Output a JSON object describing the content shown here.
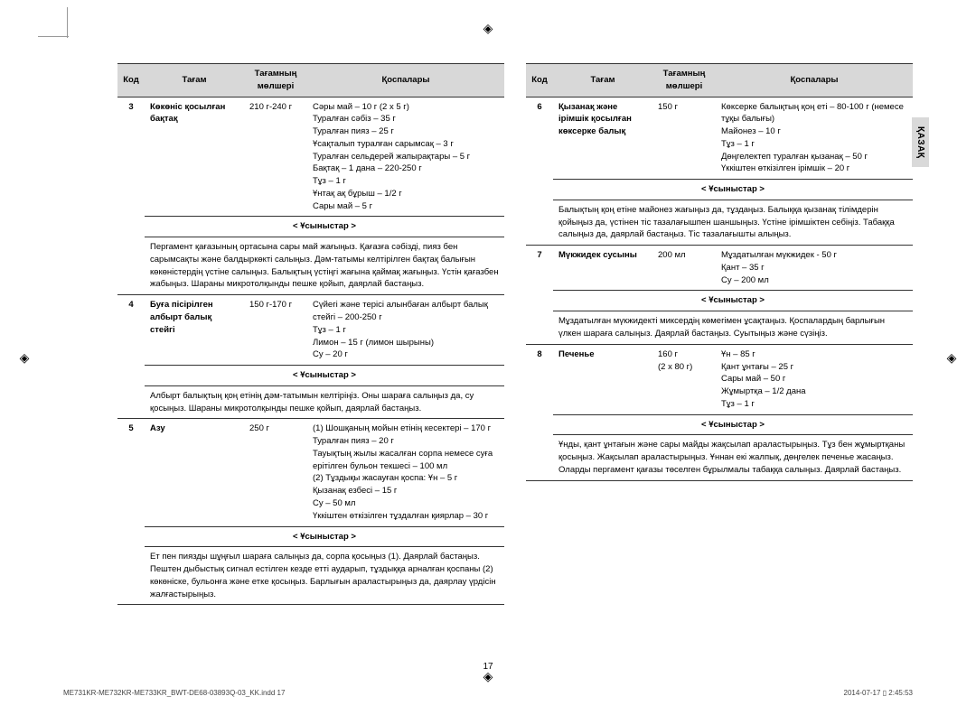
{
  "headers": {
    "code": "Код",
    "name": "Тағам",
    "amount": "Тағамның мөлшері",
    "ingredients": "Қоспалары"
  },
  "hint_label": "< Ұсыныстар >",
  "side_tab": "ҚАЗАҚ",
  "page_number": "17",
  "footer_left": "ME731KR-ME732KR-ME733KR_BWT-DE68-03893Q-03_KK.indd   17",
  "footer_right": "2014-07-17   ▯ 2:45:53",
  "left_rows": [
    {
      "code": "3",
      "name": "Көкөніс қосылған бақтақ",
      "amount": "210 г-240 г",
      "ingredients": "Сәры май – 10 г (2 x 5 г)\nТуралған сәбіз – 35 г\nТуралған пияз – 25 г\nҰсақталып туралған сарымсақ – 3 г\nТуралған сельдерей жапырақтары – 5 г\nБақтақ – 1 дана – 220-250 г\nТұз – 1 г\nҰнтақ ақ бұрыш – 1/2 г\nСары май – 5 г",
      "hint": "Пергамент қағазының ортасына сары май жағыңыз. Қағазға сәбізді, пияз бен сарымсақты және балдыркөкті салыңыз. Дәм-татымы келтірілген бақтақ балығын көкөністердің үстіне салыңыз. Балықтың үстіңгі жағына қаймақ жағыңыз. Үстін қағазбен жабыңыз. Шараны микротолқынды пешке қойып, даярлай бастаңыз."
    },
    {
      "code": "4",
      "name": "Буға пісірілген албырт балық стейгі",
      "amount": "150 г-170 г",
      "ingredients": "Сүйегі және терісі алынбаған албырт балық стейгі – 200-250 г\nТұз – 1 г\nЛимон – 15 г (лимон шырыны)\nСу – 20 г",
      "hint": "Албырт балықтың қоң етінің дәм-татымын келтіріңіз. Оны шараға салыңыз да, су қосыңыз. Шараны микротолқынды пешке қойып, даярлай бастаңыз."
    },
    {
      "code": "5",
      "name": "Азу",
      "amount": "250 г",
      "ingredients": "(1) Шошқаның мойын етінің кесектері – 170 г\nТуралған пияз – 20 г\nТауықтың жылы жасалған сорпа немесе суға ерітілген бульон текшесі – 100 мл\n(2) Тұздықы жасауған қоспа: Ұн – 5 г\nҚызанақ езбесі – 15 г\nСу – 50 мл\nҮккіштен өткізілген тұздалған қиярлар – 30 г",
      "hint": "Ет пен пиязды шұңғыл шараға салыңыз да, сорпа қосыңыз (1). Даярлай бастаңыз. Пештен дыбыстық сигнал естілген кезде етті аударып, тұздыққа арналған қоспаны (2) көкөніске, бульонға және етке қосыңыз. Барлығын араластырыңыз да, даярлау үрдісін жалғастырыңыз."
    }
  ],
  "right_rows": [
    {
      "code": "6",
      "name": "Қызанақ және ірімшік қосылған көксерке балық",
      "amount": "150 г",
      "ingredients": "Көксерке балықтың қоң еті – 80-100 г (немесе тұқы балығы)\nМайонез – 10 г\nТұз – 1 г\nДөңгелектеп туралған қызанақ – 50 г\nҮккіштен өткізілген ірімшік – 20 г",
      "hint": "Балықтың қоң етіне майонез жағыңыз да, тұздаңыз. Балыққа қызанақ тілімдерін қойыңыз да, үстінен тіс тазалағышпен шаншыңыз. Үстіне ірімшіктен себіңіз. Табаққа салыңыз да, даярлай бастаңыз. Тіс тазалағышты алыңыз."
    },
    {
      "code": "7",
      "name": "Мүкжидек сусыны",
      "amount": "200 мл",
      "ingredients": "Мұздатылған мүкжидек - 50 г\nҚант – 35 г\nСу – 200 мл",
      "hint": "Мұздатылған мүкжидекті миксердің көмегімен ұсақтаңыз. Қоспалардың барлығын үлкен шараға салыңыз. Даярлай бастаңыз. Суытыңыз және сүзіңіз."
    },
    {
      "code": "8",
      "name": "Печенье",
      "amount": "160 г\n(2 x 80 г)",
      "ingredients": "Ұн – 85 г\nҚант ұнтағы – 25 г\nСары май – 50 г\nЖұмыртқа – 1/2 дана\nТұз – 1 г",
      "hint": "Ұнды, қант ұнтағын және сары майды жақсылап араластырыңыз. Тұз бен жұмыртқаны қосыңыз. Жақсылап араластырыңыз. Ұннан екі жалпық, дөңгелек печенье жасаңыз. Оларды пергамент қағазы төселген бұрылмалы табаққа салыңыз. Даярлай бастаңыз."
    }
  ]
}
